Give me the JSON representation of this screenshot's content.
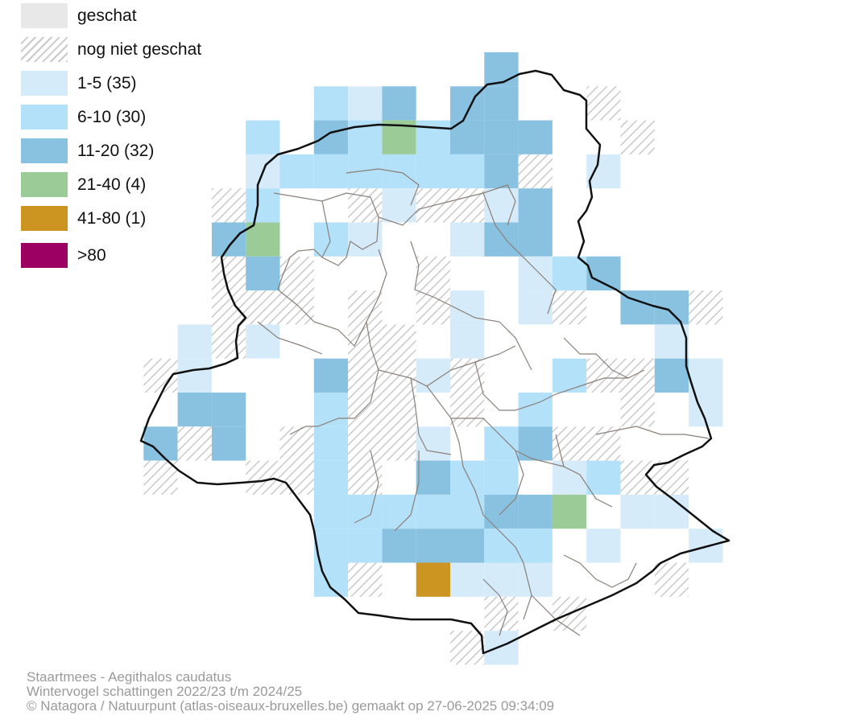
{
  "legend": {
    "items": [
      {
        "label": "geschat",
        "color": "#e8e8e8",
        "pattern": "solid"
      },
      {
        "label": "nog niet geschat",
        "color": "#c9c9c9",
        "pattern": "hatch"
      },
      {
        "label": "1-5 (35)",
        "color": "#d6ebf9",
        "pattern": "solid"
      },
      {
        "label": "6-10 (30)",
        "color": "#b4e1fa",
        "pattern": "solid"
      },
      {
        "label": "11-20 (32)",
        "color": "#89c2e0",
        "pattern": "solid"
      },
      {
        "label": "21-40 (4)",
        "color": "#9bcc97",
        "pattern": "solid"
      },
      {
        "label": "41-80 (1)",
        "color": "#cc9521",
        "pattern": "solid"
      },
      {
        "label": ">80",
        "color": "#9c0060",
        "pattern": "solid"
      }
    ]
  },
  "caption": {
    "species": "Staartmees - Aegithalos caudatus",
    "survey": "Wintervogel schattingen 2022/23 t/m 2024/25",
    "credit": "© Natagora / Natuurpunt (atlas-oiseaux-bruxelles.be) gemaakt op 27-06-2025 09:34:09"
  },
  "colors": {
    "boundary": "#111111",
    "municipality_lines": "#8a7f78"
  }
}
